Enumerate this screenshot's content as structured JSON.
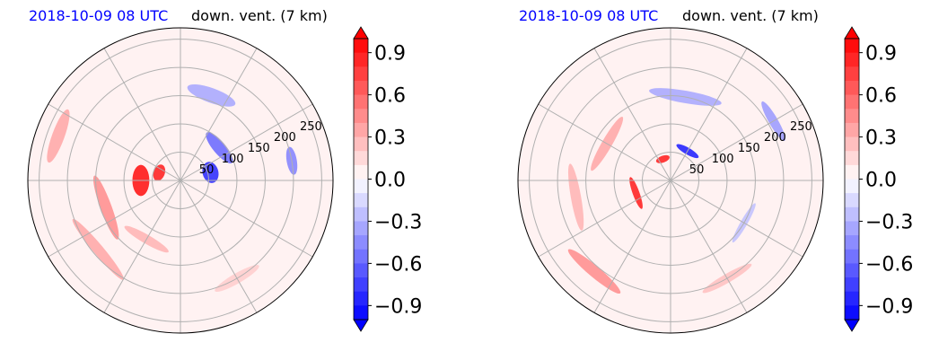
{
  "chart_data": [
    {
      "type": "heatmap",
      "projection": "polar",
      "time_label": "2018-10-09 08 UTC",
      "title": "down. vent. (7 km)",
      "radial_ticks": [
        50,
        100,
        150,
        200,
        250
      ],
      "radial_max": 270,
      "spokes_deg": [
        0,
        30,
        60,
        90,
        120,
        150,
        180,
        210,
        240,
        270,
        300,
        330
      ],
      "grid": true,
      "colorbar": {
        "ticks": [
          "0.9",
          "0.6",
          "0.3",
          "0.0",
          "−0.3",
          "−0.6",
          "−0.9"
        ],
        "range": [
          -1.0,
          1.0
        ],
        "extend": "both",
        "levels": 20
      },
      "colormap": {
        "negative": "#0000ff",
        "zero": "#ffffff",
        "positive": "#ff0000"
      },
      "field": [
        {
          "r": 70,
          "theta": 180,
          "w": 55,
          "h": 30,
          "v": 0.95
        },
        {
          "r": 40,
          "theta": 160,
          "w": 30,
          "h": 20,
          "v": 0.9
        },
        {
          "r": 55,
          "theta": 15,
          "w": 38,
          "h": 28,
          "v": -0.85
        },
        {
          "r": 90,
          "theta": 40,
          "w": 70,
          "h": 22,
          "v": -0.6
        },
        {
          "r": 160,
          "theta": 70,
          "w": 90,
          "h": 26,
          "v": -0.35
        },
        {
          "r": 200,
          "theta": 10,
          "w": 50,
          "h": 18,
          "v": -0.5
        },
        {
          "r": 140,
          "theta": 200,
          "w": 120,
          "h": 20,
          "v": 0.45
        },
        {
          "r": 190,
          "theta": 220,
          "w": 140,
          "h": 18,
          "v": 0.35
        },
        {
          "r": 120,
          "theta": 240,
          "w": 90,
          "h": 16,
          "v": 0.3
        },
        {
          "r": 230,
          "theta": 160,
          "w": 100,
          "h": 22,
          "v": 0.35
        },
        {
          "r": 200,
          "theta": 300,
          "w": 90,
          "h": 18,
          "v": 0.2
        }
      ]
    },
    {
      "type": "heatmap",
      "projection": "polar",
      "time_label": "2018-10-09 08 UTC",
      "title": "down. vent. (7 km)",
      "radial_ticks": [
        50,
        100,
        150,
        200,
        250
      ],
      "radial_max": 270,
      "spokes_deg": [
        0,
        30,
        60,
        90,
        120,
        150,
        180,
        210,
        240,
        270,
        300,
        330
      ],
      "grid": true,
      "colorbar": {
        "ticks": [
          "0.9",
          "0.6",
          "0.3",
          "0.0",
          "−0.3",
          "−0.6",
          "−0.9"
        ],
        "range": [
          -1.0,
          1.0
        ],
        "extend": "both",
        "levels": 20
      },
      "colormap": {
        "negative": "#0000ff",
        "zero": "#ffffff",
        "positive": "#ff0000"
      },
      "field": [
        {
          "r": 65,
          "theta": 200,
          "w": 60,
          "h": 12,
          "v": 0.9
        },
        {
          "r": 40,
          "theta": 110,
          "w": 25,
          "h": 12,
          "v": 0.9
        },
        {
          "r": 60,
          "theta": 60,
          "w": 45,
          "h": 12,
          "v": -0.9
        },
        {
          "r": 150,
          "theta": 80,
          "w": 130,
          "h": 22,
          "v": -0.35
        },
        {
          "r": 210,
          "theta": 30,
          "w": 80,
          "h": 16,
          "v": -0.4
        },
        {
          "r": 130,
          "theta": 150,
          "w": 110,
          "h": 18,
          "v": 0.35
        },
        {
          "r": 170,
          "theta": 190,
          "w": 120,
          "h": 18,
          "v": 0.3
        },
        {
          "r": 210,
          "theta": 230,
          "w": 120,
          "h": 20,
          "v": 0.45
        },
        {
          "r": 200,
          "theta": 300,
          "w": 100,
          "h": 16,
          "v": 0.25
        },
        {
          "r": 150,
          "theta": 330,
          "w": 80,
          "h": 12,
          "v": -0.25
        }
      ]
    }
  ]
}
